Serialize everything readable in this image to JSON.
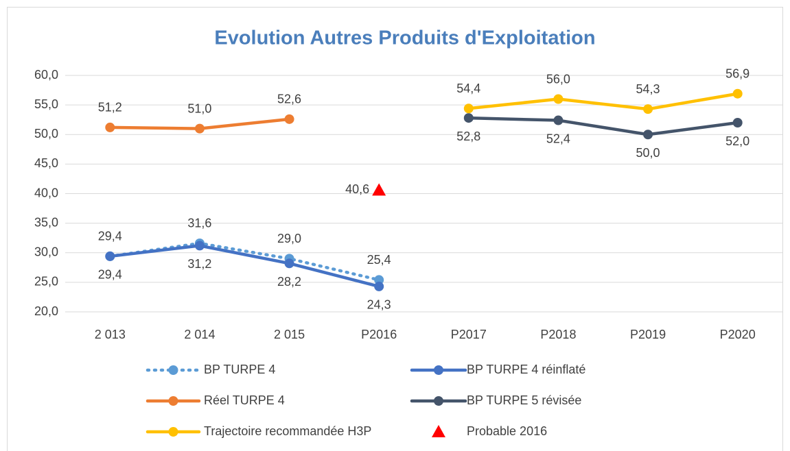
{
  "chart_data": {
    "type": "line",
    "title": "Evolution Autres Produits d'Exploitation",
    "categories": [
      "2 013",
      "2 014",
      "2 015",
      "P2016",
      "P2017",
      "P2018",
      "P2019",
      "P2020"
    ],
    "ylim": [
      20,
      60
    ],
    "yticks": [
      {
        "value": 20,
        "label": "20,0"
      },
      {
        "value": 25,
        "label": "25,0"
      },
      {
        "value": 30,
        "label": "30,0"
      },
      {
        "value": 35,
        "label": "35,0"
      },
      {
        "value": 40,
        "label": "40,0"
      },
      {
        "value": 45,
        "label": "45,0"
      },
      {
        "value": 50,
        "label": "50,0"
      },
      {
        "value": 55,
        "label": "55,0"
      },
      {
        "value": 60,
        "label": "60,0"
      }
    ],
    "grid": true,
    "legend": "bottom",
    "series": [
      {
        "name": "BP TURPE 4",
        "color": "#5b9bd5",
        "line": "dotted",
        "marker": "circle",
        "values": [
          29.4,
          31.6,
          29.0,
          25.4,
          null,
          null,
          null,
          null
        ],
        "value_labels": [
          "29,4",
          "31,6",
          "29,0",
          "25,4",
          null,
          null,
          null,
          null
        ]
      },
      {
        "name": "BP TURPE 4 réinflaté",
        "color": "#4472c4",
        "line": "solid",
        "marker": "circle",
        "values": [
          29.4,
          31.2,
          28.2,
          24.3,
          null,
          null,
          null,
          null
        ],
        "value_labels": [
          "29,4",
          "31,2",
          "28,2",
          "24,3",
          null,
          null,
          null,
          null
        ]
      },
      {
        "name": "Réel TURPE 4",
        "color": "#ed7d31",
        "line": "solid",
        "marker": "circle",
        "values": [
          51.2,
          51.0,
          52.6,
          null,
          null,
          null,
          null,
          null
        ],
        "value_labels": [
          "51,2",
          "51,0",
          "52,6",
          null,
          null,
          null,
          null,
          null
        ]
      },
      {
        "name": "BP TURPE 5 révisée",
        "color": "#44546a",
        "line": "solid",
        "marker": "circle",
        "values": [
          null,
          null,
          null,
          null,
          52.8,
          52.4,
          50.0,
          52.0
        ],
        "value_labels": [
          null,
          null,
          null,
          null,
          "52,8",
          "52,4",
          "50,0",
          "52,0"
        ]
      },
      {
        "name": "Trajectoire recommandée H3P",
        "color": "#ffc000",
        "line": "solid",
        "marker": "circle",
        "values": [
          null,
          null,
          null,
          null,
          54.4,
          56.0,
          54.3,
          56.9
        ],
        "value_labels": [
          null,
          null,
          null,
          null,
          "54,4",
          "56,0",
          "54,3",
          "56,9"
        ]
      },
      {
        "name": "Probable 2016",
        "color": "#ff0000",
        "line": "none",
        "marker": "triangle",
        "values": [
          null,
          null,
          null,
          40.6,
          null,
          null,
          null,
          null
        ],
        "value_labels": [
          null,
          null,
          null,
          "40,6",
          null,
          null,
          null,
          null
        ]
      }
    ]
  }
}
